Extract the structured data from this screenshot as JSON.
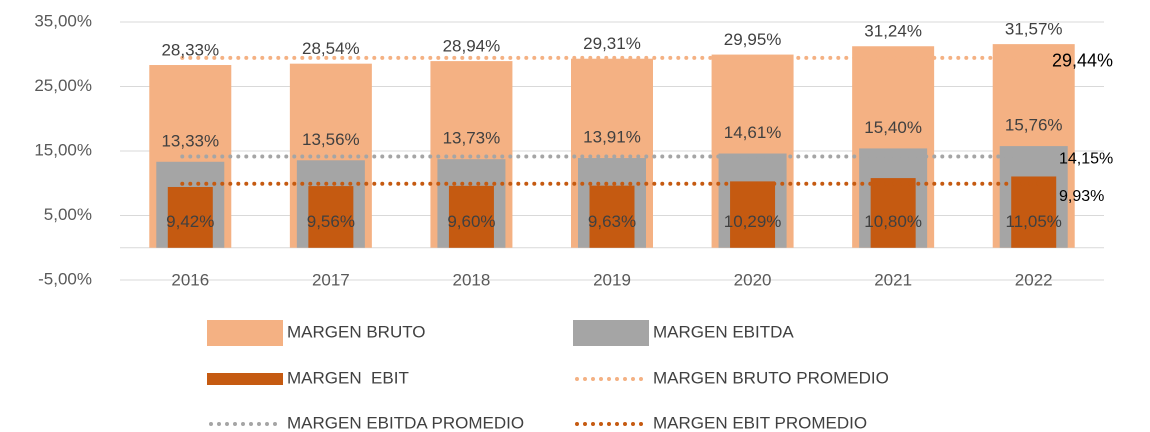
{
  "chart_data": {
    "type": "bar",
    "categories": [
      "2016",
      "2017",
      "2018",
      "2019",
      "2020",
      "2021",
      "2022"
    ],
    "series": [
      {
        "name": "MARGEN BRUTO",
        "color": "#f4b183",
        "values": [
          28.33,
          28.54,
          28.94,
          29.31,
          29.95,
          31.24,
          31.57
        ],
        "value_labels": [
          "28,33%",
          "28,54%",
          "28,94%",
          "29,31%",
          "29,95%",
          "31,24%",
          "31,57%"
        ]
      },
      {
        "name": "MARGEN EBITDA",
        "color": "#a5a5a5",
        "values": [
          13.33,
          13.56,
          13.73,
          13.91,
          14.61,
          15.4,
          15.76
        ],
        "value_labels": [
          "13,33%",
          "13,56%",
          "13,73%",
          "13,91%",
          "14,61%",
          "15,40%",
          "15,76%"
        ]
      },
      {
        "name": "MARGEN  EBIT",
        "color": "#c55a11",
        "values": [
          9.42,
          9.56,
          9.6,
          9.63,
          10.29,
          10.8,
          11.05
        ],
        "value_labels": [
          "9,42%",
          "9,56%",
          "9,60%",
          "9,63%",
          "10,29%",
          "10,80%",
          "11,05%"
        ]
      },
      {
        "name": "MARGEN BRUTO PROMEDIO",
        "type": "line",
        "color": "#f4b183",
        "value": 29.44,
        "value_label": "29,44%"
      },
      {
        "name": "MARGEN EBITDA PROMEDIO",
        "type": "line",
        "color": "#a5a5a5",
        "value": 14.15,
        "value_label": "14,15%"
      },
      {
        "name": "MARGEN EBIT PROMEDIO",
        "type": "line",
        "color": "#c55a11",
        "value": 9.93,
        "value_label": "9,93%"
      }
    ],
    "ylim": [
      -5,
      35
    ],
    "yticks": [
      {
        "value": -5,
        "label": "-5,00%"
      },
      {
        "value": 5,
        "label": "5,00%"
      },
      {
        "value": 15,
        "label": "15,00%"
      },
      {
        "value": 25,
        "label": "25,00%"
      },
      {
        "value": 35,
        "label": "35,00%"
      }
    ],
    "grid": true
  }
}
